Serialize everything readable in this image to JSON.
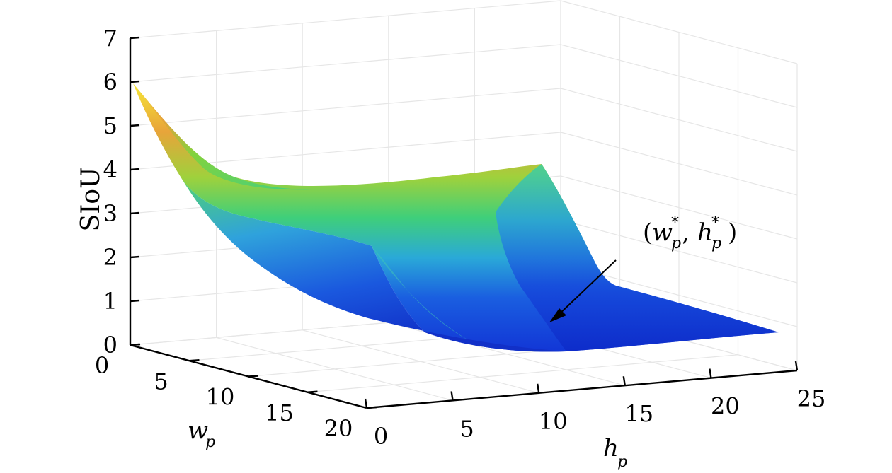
{
  "chart_data": {
    "type": "surface",
    "title": "",
    "xlabel": "h",
    "xlabel_sub": "p",
    "ylabel": "w",
    "ylabel_sub": "p",
    "zlabel": "SIoU",
    "xlim": [
      0,
      25
    ],
    "ylim": [
      0,
      20
    ],
    "zlim": [
      0,
      7
    ],
    "xticks": [
      "0",
      "5",
      "10",
      "15",
      "20",
      "25"
    ],
    "yticks": [
      "0",
      "5",
      "10",
      "15",
      "20"
    ],
    "zticks": [
      "0",
      "1",
      "2",
      "3",
      "4",
      "5",
      "6",
      "7"
    ],
    "grid": true,
    "colormap": "parula",
    "surface_corners": {
      "h0_w0": 6.0,
      "h25_w0": 4.2,
      "h0_w20": 2.2,
      "h25_w20": 0.0
    },
    "minimum_region": {
      "h": 12,
      "w": 10,
      "siou": 0.0
    },
    "annotation": {
      "open": "(",
      "w": "w",
      "w_sub": "p",
      "w_sup": "*",
      "sep": ",",
      "h": "h",
      "h_sub": "p",
      "h_sup": "*",
      "close": ")"
    }
  }
}
